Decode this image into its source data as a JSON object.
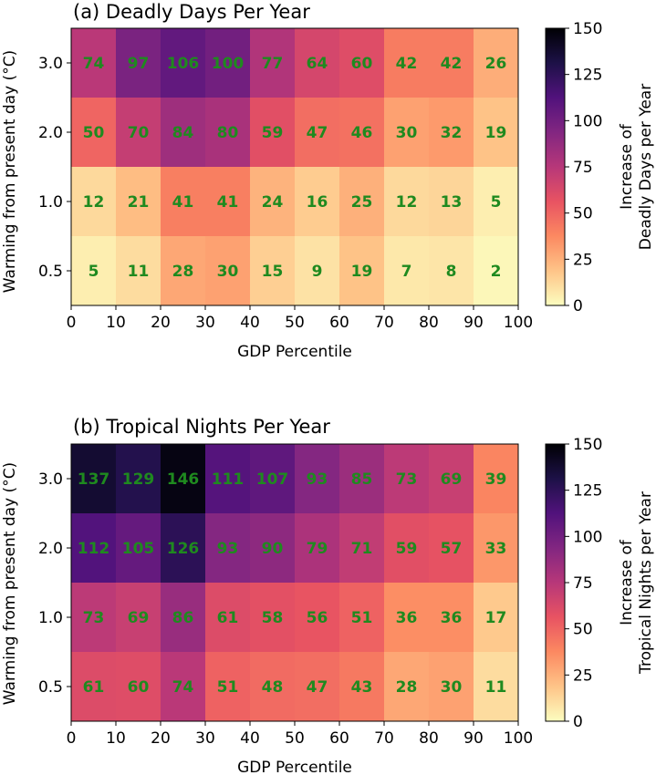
{
  "chart_data": [
    {
      "type": "heatmap",
      "title": "(a) Deadly Days Per Year",
      "xlabel": "GDP Percentile",
      "ylabel": "Warming from present day (°C)",
      "x_ticks": [
        "0",
        "10",
        "20",
        "30",
        "40",
        "50",
        "60",
        "70",
        "80",
        "90",
        "100"
      ],
      "y_ticks": [
        "3.0",
        "2.0",
        "1.0",
        "0.5"
      ],
      "xlim": [
        0,
        100
      ],
      "rows": [
        "3.0",
        "2.0",
        "1.0",
        "0.5"
      ],
      "values": [
        [
          74,
          97,
          106,
          100,
          77,
          64,
          60,
          42,
          42,
          26
        ],
        [
          50,
          70,
          84,
          80,
          59,
          47,
          46,
          30,
          32,
          19
        ],
        [
          12,
          21,
          41,
          41,
          24,
          16,
          25,
          12,
          13,
          5
        ],
        [
          5,
          11,
          28,
          30,
          15,
          9,
          19,
          7,
          8,
          2
        ]
      ],
      "colorbar": {
        "label_line1": "Increase of",
        "label_line2": "Deadly Days per Year",
        "ticks": [
          "150",
          "125",
          "100",
          "75",
          "50",
          "25",
          "0"
        ],
        "range": [
          0,
          150
        ],
        "colormap": "magma_r"
      }
    },
    {
      "type": "heatmap",
      "title": "(b) Tropical Nights Per Year",
      "xlabel": "GDP Percentile",
      "ylabel": "Warming from present day (°C)",
      "x_ticks": [
        "0",
        "10",
        "20",
        "30",
        "40",
        "50",
        "60",
        "70",
        "80",
        "90",
        "100"
      ],
      "y_ticks": [
        "3.0",
        "2.0",
        "1.0",
        "0.5"
      ],
      "xlim": [
        0,
        100
      ],
      "rows": [
        "3.0",
        "2.0",
        "1.0",
        "0.5"
      ],
      "values": [
        [
          137,
          129,
          146,
          111,
          107,
          93,
          85,
          73,
          69,
          39
        ],
        [
          112,
          105,
          126,
          93,
          90,
          79,
          71,
          59,
          57,
          33
        ],
        [
          73,
          69,
          86,
          61,
          58,
          56,
          51,
          36,
          36,
          17
        ],
        [
          61,
          60,
          74,
          51,
          48,
          47,
          43,
          28,
          30,
          11
        ]
      ],
      "colorbar": {
        "label_line1": "Increase of",
        "label_line2": "Tropical Nights per Year",
        "ticks": [
          "150",
          "125",
          "100",
          "75",
          "50",
          "25",
          "0"
        ],
        "range": [
          0,
          150
        ],
        "colormap": "magma_r"
      }
    }
  ]
}
